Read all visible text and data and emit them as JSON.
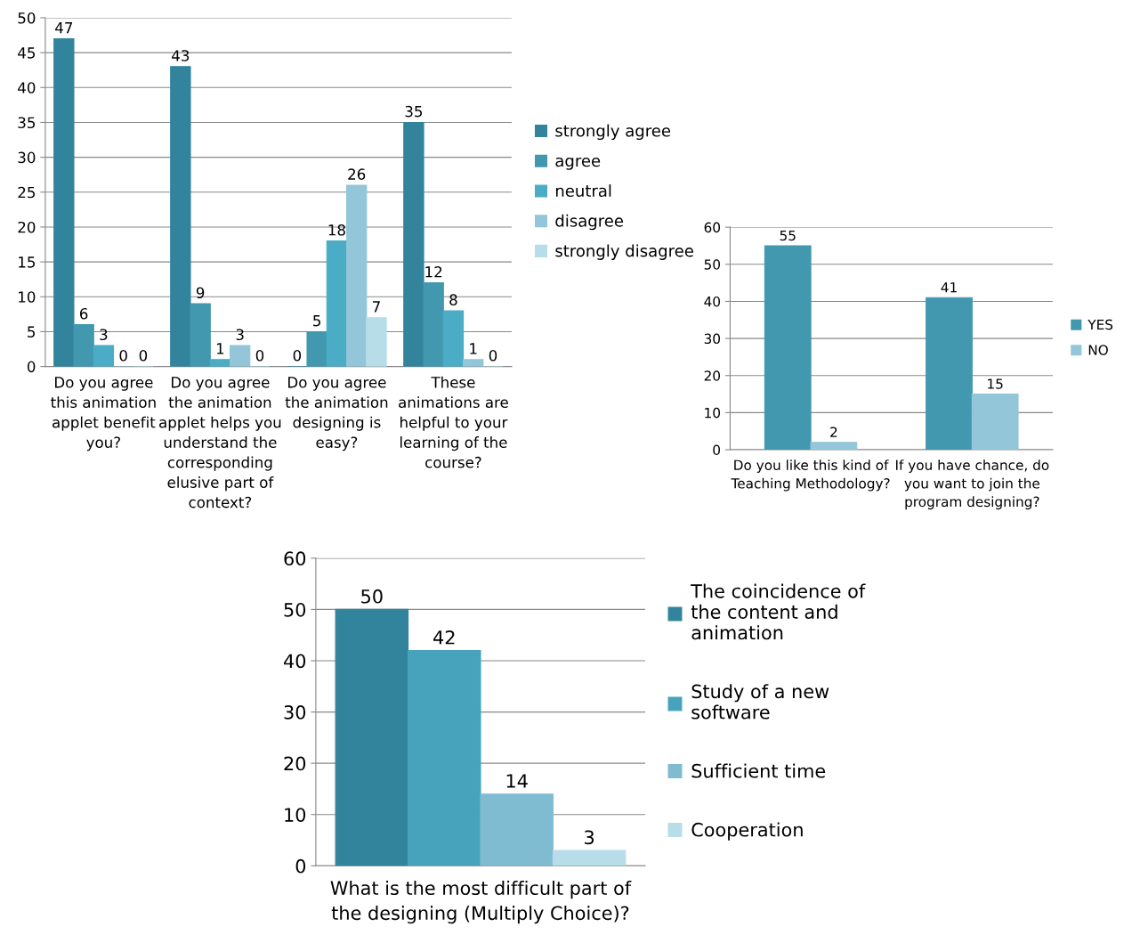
{
  "chart_data": [
    {
      "type": "bar",
      "categories": [
        "Do you agree\nthis animation\napplet benefit\nyou?",
        "Do you agree\nthe animation\napplet helps you\nunderstand the\ncorresponding\nelusive part of\ncontext?",
        "Do you agree\nthe animation\ndesigning is\neasy?",
        "These\nanimations are\nhelpful to your\nlearning of the\ncourse?"
      ],
      "series": [
        {
          "name": "strongly agree",
          "color": "#31849b",
          "values": [
            47,
            43,
            0,
            35
          ]
        },
        {
          "name": "agree",
          "color": "#4198af",
          "values": [
            6,
            9,
            5,
            12
          ]
        },
        {
          "name": "neutral",
          "color": "#4bacc6",
          "values": [
            3,
            1,
            18,
            8
          ]
        },
        {
          "name": "disagree",
          "color": "#93c6d8",
          "values": [
            0,
            3,
            26,
            1
          ]
        },
        {
          "name": "strongly disagree",
          "color": "#b7dde8",
          "values": [
            0,
            0,
            7,
            0
          ]
        }
      ],
      "ylim": [
        0,
        50
      ],
      "yticks": [
        0,
        5,
        10,
        15,
        20,
        25,
        30,
        35,
        40,
        45,
        50
      ],
      "grid": "y",
      "legend": "right",
      "data_labels": true
    },
    {
      "type": "bar",
      "categories": [
        "Do you like this kind of\nTeaching Methodology?",
        "If you have chance, do\nyou want to join the\nprogram designing?"
      ],
      "series": [
        {
          "name": "YES",
          "color": "#4198af",
          "values": [
            55,
            41
          ]
        },
        {
          "name": "NO",
          "color": "#93c6d8",
          "values": [
            2,
            15
          ]
        }
      ],
      "ylim": [
        0,
        60
      ],
      "yticks": [
        0,
        10,
        20,
        30,
        40,
        50,
        60
      ],
      "grid": "y",
      "legend": "right",
      "data_labels": true
    },
    {
      "type": "bar",
      "categories": [
        null
      ],
      "xlabel": "What is the most difficult part of\nthe designing (Multiply Choice)?",
      "series": [
        {
          "name": "The coincidence of\nthe content and\nanimation",
          "color": "#31849b",
          "values": [
            50
          ]
        },
        {
          "name": "Study of a new\nsoftware",
          "color": "#47a3bb",
          "values": [
            42
          ]
        },
        {
          "name": "Sufficient time",
          "color": "#7fbcd2",
          "values": [
            14
          ]
        },
        {
          "name": "Cooperation",
          "color": "#b7dde8",
          "values": [
            3
          ]
        }
      ],
      "ylim": [
        0,
        60
      ],
      "yticks": [
        0,
        10,
        20,
        30,
        40,
        50,
        60
      ],
      "grid": "y",
      "legend": "right",
      "data_labels": true
    }
  ]
}
